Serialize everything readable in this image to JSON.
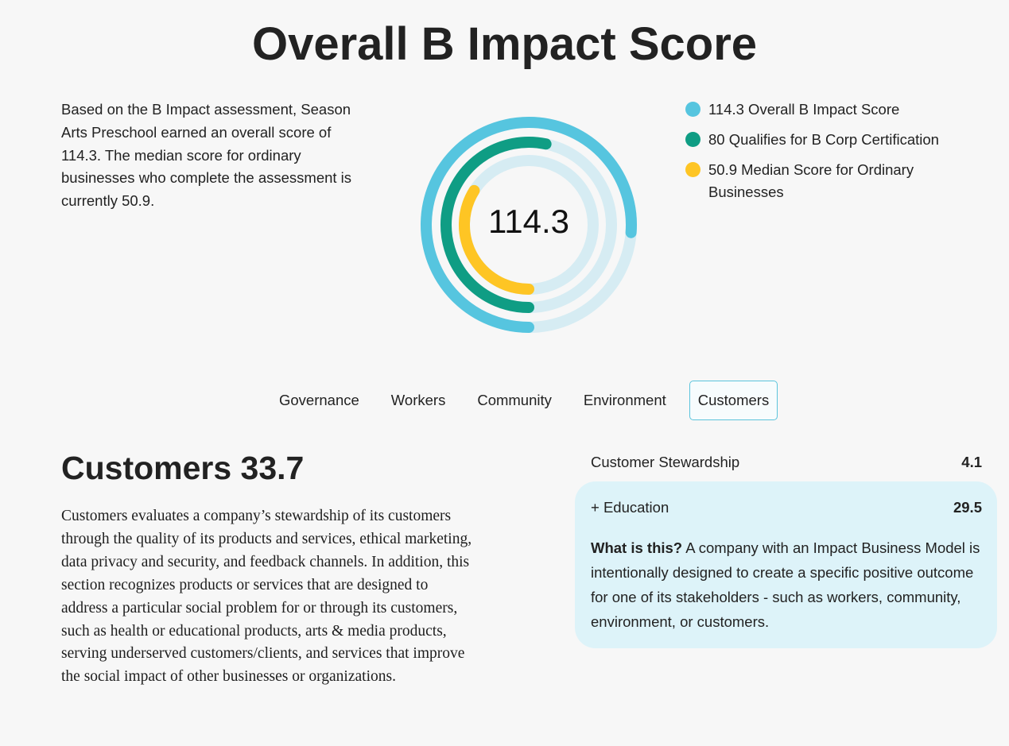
{
  "header": {
    "title": "Overall B Impact Score"
  },
  "intro": {
    "text": "Based on the B Impact assessment, Season Arts Preschool earned an overall score of 114.3. The median score for ordinary businesses who complete the assessment is currently 50.9."
  },
  "chart_data": {
    "type": "radial-bar",
    "center_label": "114.3",
    "series": [
      {
        "name": "Overall B Impact Score",
        "value": 114.3,
        "color": "#56c5df"
      },
      {
        "name": "Qualifies for B Corp Certification",
        "value": 80,
        "color": "#0f9d84"
      },
      {
        "name": "Median Score for Ordinary Businesses",
        "value": 50.9,
        "color": "#fec524"
      }
    ],
    "track_color": "#d6ecf3"
  },
  "legend": {
    "items": [
      {
        "label": "114.3 Overall B Impact Score",
        "color": "#56c5df"
      },
      {
        "label": "80 Qualifies for B Corp Certification",
        "color": "#0f9d84"
      },
      {
        "label": "50.9 Median Score for Ordinary Businesses",
        "color": "#fec524"
      }
    ]
  },
  "tabs": [
    {
      "label": "Governance",
      "active": false
    },
    {
      "label": "Workers",
      "active": false
    },
    {
      "label": "Community",
      "active": false
    },
    {
      "label": "Environment",
      "active": false
    },
    {
      "label": "Customers",
      "active": true
    }
  ],
  "section": {
    "title": "Customers 33.7",
    "description": "Customers evaluates a company’s stewardship of its customers through the quality of its products and services, ethical marketing, data privacy and security, and feedback channels. In addition, this section recognizes products or services that are designed to address a particular social problem for or through its customers, such as health or educational products, arts & media products, serving underserved customers/clients, and services that improve the social impact of other businesses or organizations."
  },
  "scores": {
    "stewardship": {
      "label": "Customer Stewardship",
      "value": "4.1"
    },
    "education": {
      "label": "+ Education",
      "value": "29.5",
      "explain_label": "What is this?",
      "explain_text": " A company with an Impact Business Model is intentionally designed to create a specific positive outcome for one of its stakeholders - such as workers, community, environment, or customers."
    }
  },
  "colors": {
    "panel_bg": "#ddf3f9",
    "active_tab_border": "#5bc4dc"
  }
}
